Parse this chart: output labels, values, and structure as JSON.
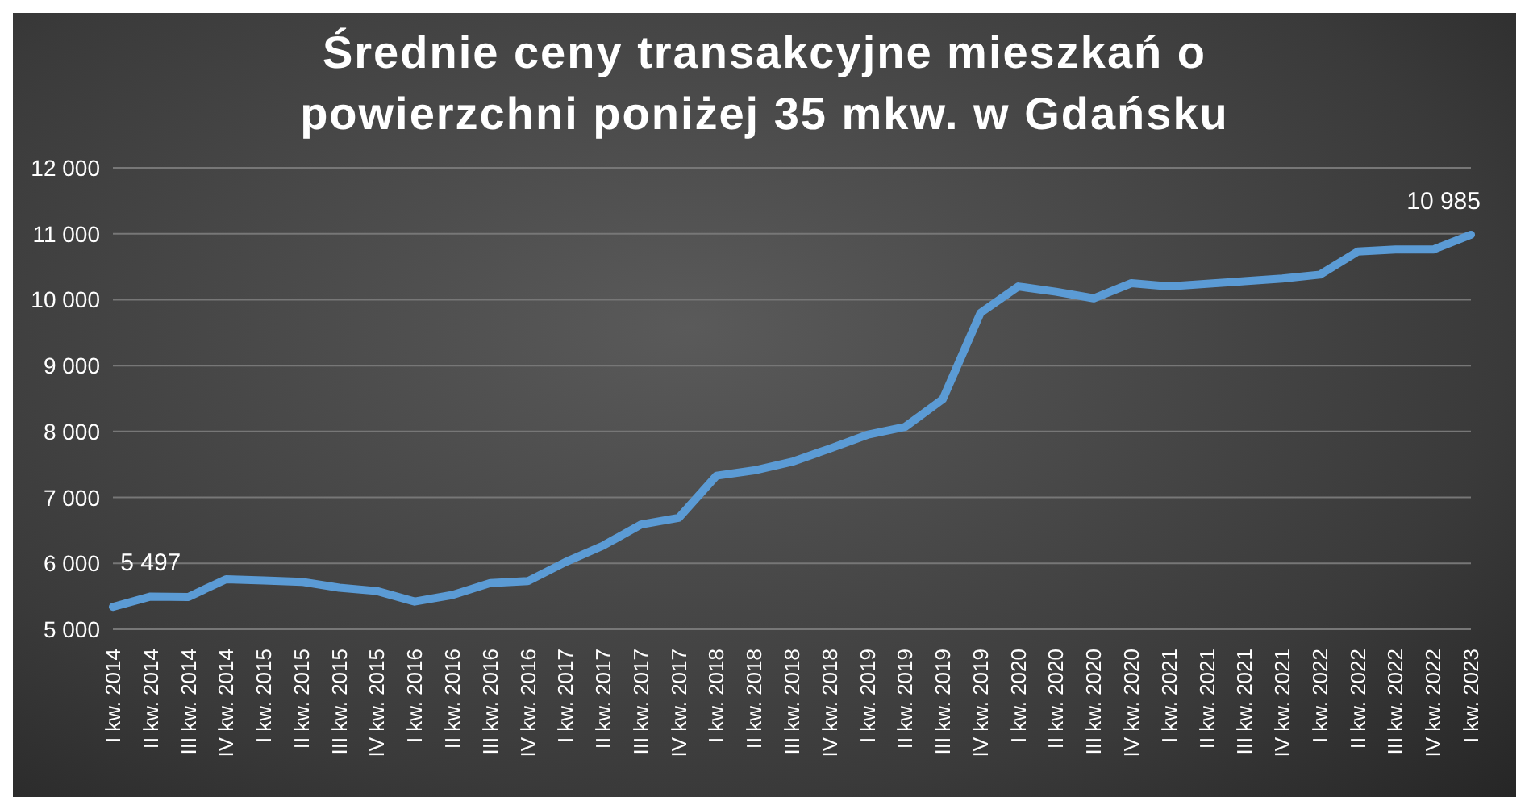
{
  "chart_data": {
    "type": "line",
    "title": "Średnie ceny transakcyjne mieszkań o powierzchni poniżej 35 mkw. w Gdańsku",
    "categories": [
      "I kw. 2014",
      "II kw. 2014",
      "III kw. 2014",
      "IV kw. 2014",
      "I kw. 2015",
      "II kw. 2015",
      "III kw. 2015",
      "IV kw. 2015",
      "I kw. 2016",
      "II kw. 2016",
      "III kw. 2016",
      "IV kw. 2016",
      "I kw. 2017",
      "II kw. 2017",
      "III kw. 2017",
      "IV kw. 2017",
      "I kw. 2018",
      "II kw. 2018",
      "III kw. 2018",
      "IV kw. 2018",
      "I kw. 2019",
      "II kw. 2019",
      "III kw. 2019",
      "IV kw. 2019",
      "I kw. 2020",
      "II kw. 2020",
      "III kw. 2020",
      "IV kw. 2020",
      "I kw. 2021",
      "II kw. 2021",
      "III kw. 2021",
      "IV kw. 2021",
      "I kw. 2022",
      "II kw. 2022",
      "III kw. 2022",
      "IV kw. 2022",
      "I kw. 2023"
    ],
    "series": [
      {
        "color": "#5b9bd5",
        "values": [
          5340,
          5497,
          5490,
          5760,
          5740,
          5720,
          5630,
          5580,
          5420,
          5520,
          5700,
          5730,
          6020,
          6270,
          6590,
          6690,
          7330,
          7410,
          7540,
          7740,
          7950,
          8070,
          8490,
          9800,
          10200,
          10120,
          10020,
          10250,
          10200,
          10240,
          10280,
          10320,
          10380,
          10730,
          10760,
          10760,
          10985
        ],
        "value_labels": [
          null,
          "5 497",
          null,
          null,
          null,
          null,
          null,
          null,
          null,
          null,
          null,
          null,
          null,
          null,
          null,
          null,
          null,
          null,
          null,
          null,
          null,
          null,
          null,
          null,
          null,
          null,
          null,
          null,
          null,
          null,
          null,
          null,
          null,
          null,
          null,
          null,
          "10 985"
        ]
      }
    ],
    "ylim": [
      5000,
      12000
    ],
    "yticks": [
      {
        "value": 5000,
        "label": "5 000"
      },
      {
        "value": 6000,
        "label": "6 000"
      },
      {
        "value": 7000,
        "label": "7 000"
      },
      {
        "value": 8000,
        "label": "8 000"
      },
      {
        "value": 9000,
        "label": "9 000"
      },
      {
        "value": 10000,
        "label": "10 000"
      },
      {
        "value": 11000,
        "label": "11 000"
      },
      {
        "value": 12000,
        "label": "12 000"
      }
    ],
    "grid": "y",
    "legend": false,
    "marker": "none",
    "line_style": "solid"
  }
}
